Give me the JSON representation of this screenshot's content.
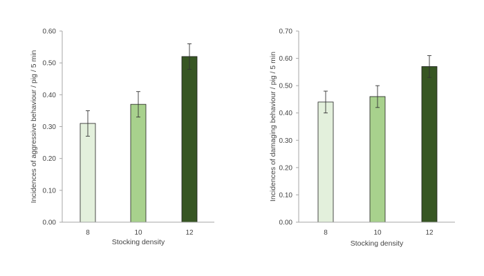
{
  "chart_data": [
    {
      "type": "bar",
      "categories": [
        "8",
        "10",
        "12"
      ],
      "values": [
        0.31,
        0.37,
        0.52
      ],
      "errors": [
        0.04,
        0.04,
        0.04
      ],
      "xlabel": "Stocking density",
      "ylabel": "Incidences of aggressive behaviour / pig / 5 min",
      "ylim": [
        0,
        0.6
      ],
      "yticks": [
        "0.00",
        "0.10",
        "0.20",
        "0.30",
        "0.40",
        "0.50",
        "0.60"
      ],
      "colors": [
        "#e3f0dc",
        "#a8d18d",
        "#375623"
      ],
      "grid": false,
      "legend": "none"
    },
    {
      "type": "bar",
      "categories": [
        "8",
        "10",
        "12"
      ],
      "values": [
        0.44,
        0.46,
        0.57
      ],
      "errors": [
        0.04,
        0.04,
        0.04
      ],
      "xlabel": "Stocking density",
      "ylabel": "Incidences of damaging behaviour / pig / 5 min",
      "ylim": [
        0,
        0.7
      ],
      "yticks": [
        "0.00",
        "0.10",
        "0.20",
        "0.30",
        "0.40",
        "0.50",
        "0.60",
        "0.70"
      ],
      "colors": [
        "#e3f0dc",
        "#a8d18d",
        "#375623"
      ],
      "grid": false,
      "legend": "none"
    }
  ]
}
